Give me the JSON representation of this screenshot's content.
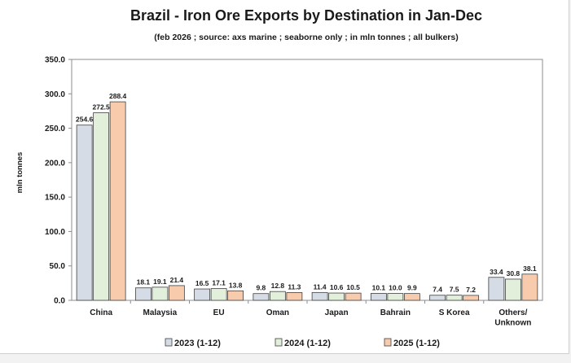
{
  "chart_data": {
    "type": "bar",
    "title": "Brazil - Iron Ore Exports by Destination in Jan-Dec",
    "subtitle": "(feb 2026 ; source: axs marine ; seaborne only ; in mln tonnes ; all bulkers)",
    "xlabel": "",
    "ylabel": "mln tonnes",
    "ylim": [
      0,
      350
    ],
    "yticks": [
      "0.0",
      "50.0",
      "100.0",
      "150.0",
      "200.0",
      "250.0",
      "300.0",
      "350.0"
    ],
    "ytick_values": [
      0,
      50,
      100,
      150,
      200,
      250,
      300,
      350
    ],
    "categories": [
      "China",
      "Malaysia",
      "EU",
      "Oman",
      "Japan",
      "Bahrain",
      "S Korea",
      "Others/\nUnknown"
    ],
    "series": [
      {
        "name": "2023 (1-12)",
        "color": "#d6dce5",
        "values": [
          254.6,
          18.1,
          16.5,
          9.8,
          11.4,
          10.1,
          7.4,
          33.4
        ],
        "labels": [
          "254.6",
          "18.1",
          "16.5",
          "9.8",
          "11.4",
          "10.1",
          "7.4",
          "33.4"
        ]
      },
      {
        "name": "2024 (1-12)",
        "color": "#e2efda",
        "values": [
          272.5,
          19.1,
          17.1,
          12.8,
          10.6,
          10.0,
          7.5,
          30.8
        ],
        "labels": [
          "272.5",
          "19.1",
          "17.1",
          "12.8",
          "10.6",
          "10.0",
          "7.5",
          "30.8"
        ]
      },
      {
        "name": "2025 (1-12)",
        "color": "#f8cbad",
        "values": [
          288.4,
          21.4,
          13.8,
          11.3,
          10.5,
          9.9,
          7.2,
          38.1
        ],
        "labels": [
          "288.4",
          "21.4",
          "13.8",
          "11.3",
          "10.5",
          "9.9",
          "7.2",
          "38.1"
        ]
      }
    ],
    "grid": false,
    "legend": "bottom"
  }
}
